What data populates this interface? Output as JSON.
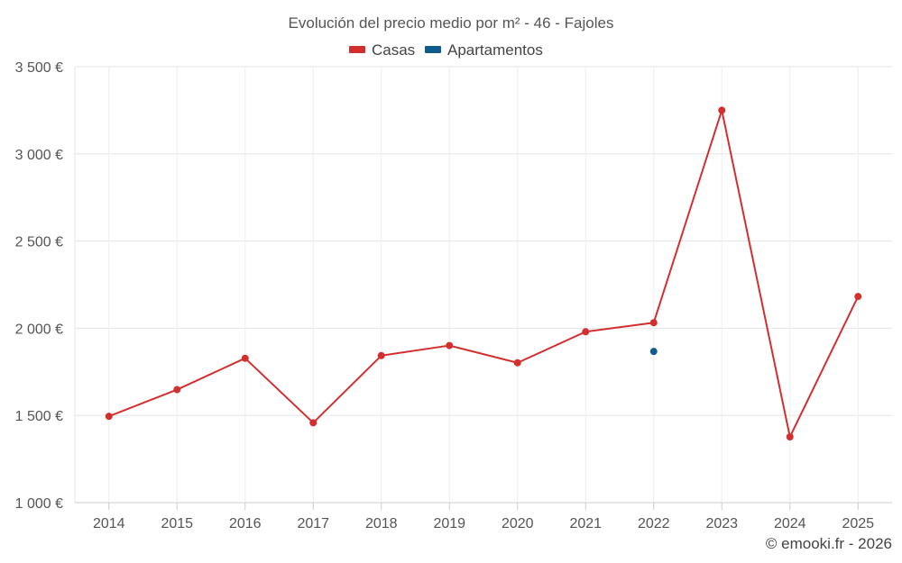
{
  "chart_data": {
    "type": "line",
    "title": "Evolución del precio medio por m² - 46 - Fajoles",
    "xlabel": "",
    "ylabel": "",
    "categories": [
      "2014",
      "2015",
      "2016",
      "2017",
      "2018",
      "2019",
      "2020",
      "2021",
      "2022",
      "2023",
      "2024",
      "2025"
    ],
    "ylim": [
      1000,
      3500
    ],
    "yticks": [
      1000,
      1500,
      2000,
      2500,
      3000,
      3500
    ],
    "ytick_labels": [
      "1 000 €",
      "1 500 €",
      "2 000 €",
      "2 500 €",
      "3 000 €",
      "3 500 €"
    ],
    "grid": true,
    "legend_position": "top-center",
    "series": [
      {
        "name": "Casas",
        "color": "#d32f2f",
        "values": [
          1495,
          1648,
          1828,
          1458,
          1843,
          1901,
          1802,
          1980,
          2032,
          3250,
          1377,
          2182
        ]
      },
      {
        "name": "Apartamentos",
        "color": "#0e5c8f",
        "values": [
          null,
          null,
          null,
          null,
          null,
          null,
          null,
          null,
          1867,
          null,
          null,
          null
        ]
      }
    ],
    "credit": "© emooki.fr - 2026"
  }
}
